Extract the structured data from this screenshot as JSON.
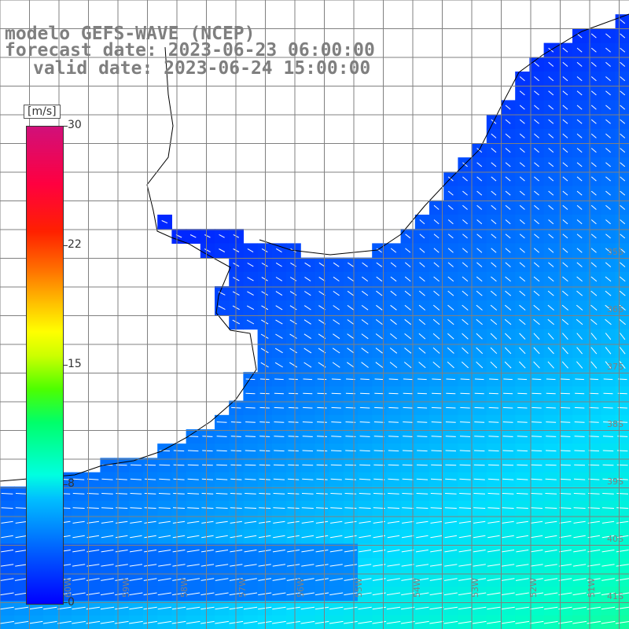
{
  "title": {
    "line1": "modelo GEFS-WAVE (NCEP)",
    "line2": "forecast date: 2023-06-23 06:00:00",
    "line3": "valid date: 2023-06-24 15:00:00"
  },
  "colorbar": {
    "unit": "[m/s]",
    "min": 0,
    "max": 30,
    "ticks": [
      "30",
      "22",
      "15",
      "8",
      "0"
    ],
    "colors": [
      "#0000ff",
      "#00bfff",
      "#00ff6a",
      "#ffff00",
      "#ff2000",
      "#d0107a"
    ]
  },
  "lon_labels": [
    "60W",
    "59W",
    "58W",
    "57W",
    "56W",
    "55W",
    "54W",
    "53W",
    "52W",
    "51W"
  ],
  "lat_labels": [
    "35S",
    "36S",
    "37S",
    "38S",
    "39S",
    "40S",
    "41S"
  ],
  "colors": {
    "land": "#ffffff",
    "coast": "#000000",
    "grid": "#808080",
    "arrows": "#ffffff",
    "title": "#7f7f7f"
  }
}
